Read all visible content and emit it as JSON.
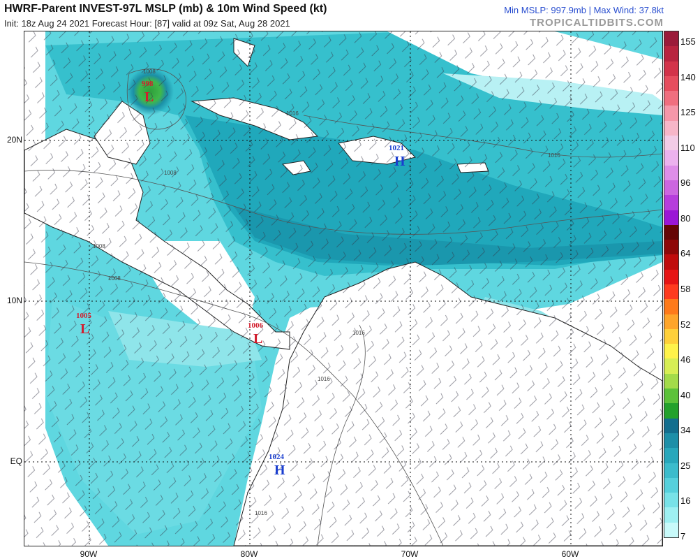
{
  "header": {
    "title": "HWRF-Parent INVEST-97L MSLP (mb) & 10m Wind Speed (kt)",
    "subtitle": "Init: 18z Aug 24 2021   Forecast Hour: [87]   valid at 09z Sat, Aug 28 2021",
    "stats": "Min MSLP: 997.9mb | Max Wind: 37.8kt",
    "brand": "TROPICALTIDBITS.COM"
  },
  "axes": {
    "lat_labels": [
      "20N",
      "10N",
      "EQ"
    ],
    "lon_labels": [
      "90W",
      "80W",
      "70W",
      "60W"
    ]
  },
  "pressure_centers": [
    {
      "type": "L",
      "value": "998",
      "color": "#d21e2e"
    },
    {
      "type": "L",
      "value": "1005",
      "color": "#d21e2e"
    },
    {
      "type": "L",
      "value": "1006",
      "color": "#d21e2e"
    },
    {
      "type": "H",
      "value": "1021",
      "color": "#1a3ecf"
    },
    {
      "type": "H",
      "value": "1024",
      "color": "#1a3ecf"
    }
  ],
  "isobar_labels": [
    "1008",
    "1008",
    "1008",
    "1008",
    "1016",
    "1016",
    "1016",
    "1016",
    "1016"
  ],
  "colorbar": {
    "labels": [
      "155",
      "140",
      "125",
      "110",
      "96",
      "80",
      "64",
      "58",
      "52",
      "46",
      "40",
      "34",
      "25",
      "16",
      "7"
    ],
    "colors": [
      "#9b1b3a",
      "#b8243f",
      "#d3334a",
      "#e64d5e",
      "#f06f7f",
      "#f597a9",
      "#f7b6c8",
      "#f3cce6",
      "#ecb2ee",
      "#de8ee8",
      "#cc66e0",
      "#b63ddc",
      "#9b16d6",
      "#650606",
      "#8e0808",
      "#c00c0c",
      "#e61414",
      "#ff3b1e",
      "#ff7a1a",
      "#ffa52a",
      "#ffd03a",
      "#fff34a",
      "#d7ee54",
      "#a3db4a",
      "#5cc23a",
      "#23a12c",
      "#136e8e",
      "#1d8fa8",
      "#28a7bb",
      "#3cbccc",
      "#56d0dc",
      "#78e2e8",
      "#9ef0f2",
      "#c8fafa"
    ]
  }
}
